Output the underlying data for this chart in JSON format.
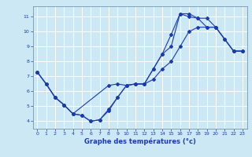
{
  "xlabel": "Graphe des températures (°c)",
  "xlim": [
    -0.5,
    23.5
  ],
  "ylim": [
    3.5,
    11.7
  ],
  "yticks": [
    4,
    5,
    6,
    7,
    8,
    9,
    10,
    11
  ],
  "xticks": [
    0,
    1,
    2,
    3,
    4,
    5,
    6,
    7,
    8,
    9,
    10,
    11,
    12,
    13,
    14,
    15,
    16,
    17,
    18,
    19,
    20,
    21,
    22,
    23
  ],
  "bg_color": "#cde8f5",
  "line_color": "#1a3aaf",
  "line1_x": [
    0,
    1,
    2,
    3,
    4,
    5,
    6,
    7,
    8,
    9,
    10,
    11,
    12,
    13,
    14,
    15,
    16,
    17,
    18,
    19,
    20,
    21,
    22,
    23
  ],
  "line1_y": [
    7.3,
    6.5,
    5.6,
    5.1,
    4.5,
    4.4,
    4.0,
    4.1,
    4.7,
    5.6,
    6.4,
    6.5,
    6.5,
    7.5,
    8.5,
    9.0,
    11.2,
    11.2,
    10.9,
    10.9,
    10.3,
    9.5,
    8.7,
    8.7
  ],
  "line2_x": [
    0,
    1,
    2,
    3,
    4,
    8,
    9,
    10,
    11,
    12,
    13,
    14,
    15,
    16,
    17,
    18,
    19,
    20,
    22,
    23
  ],
  "line2_y": [
    7.3,
    6.5,
    5.6,
    5.1,
    4.5,
    6.4,
    6.5,
    6.4,
    6.5,
    6.5,
    7.5,
    8.5,
    9.8,
    11.2,
    11.0,
    10.9,
    10.3,
    10.3,
    8.7,
    8.7
  ],
  "line3_x": [
    0,
    1,
    2,
    3,
    4,
    5,
    6,
    7,
    8,
    9,
    10,
    11,
    12,
    13,
    14,
    15,
    16,
    17,
    18,
    19,
    20,
    21,
    22,
    23
  ],
  "line3_y": [
    7.3,
    6.5,
    5.6,
    5.1,
    4.5,
    4.4,
    4.0,
    4.1,
    4.8,
    5.6,
    6.4,
    6.5,
    6.5,
    6.8,
    7.5,
    8.0,
    9.0,
    10.0,
    10.3,
    10.3,
    10.3,
    9.5,
    8.7,
    8.7
  ]
}
